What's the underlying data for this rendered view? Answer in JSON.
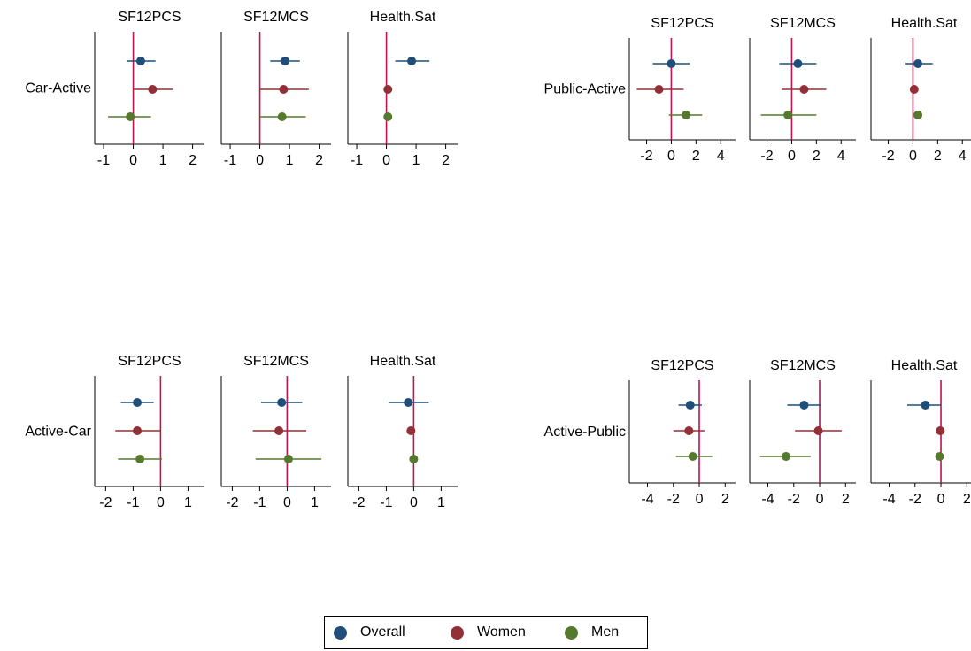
{
  "chart_data": [
    {
      "type": "coefficient-plot",
      "row_label": "Car-Active",
      "panels": [
        {
          "title": "SF12PCS",
          "xlim": [
            -1.3,
            2.4
          ],
          "ticks": [
            -1,
            0,
            1,
            2
          ],
          "points": [
            {
              "series": "Overall",
              "est": 0.25,
              "lo": -0.2,
              "hi": 0.75
            },
            {
              "series": "Women",
              "est": 0.65,
              "lo": 0.0,
              "hi": 1.35
            },
            {
              "series": "Men",
              "est": -0.1,
              "lo": -0.85,
              "hi": 0.6
            }
          ]
        },
        {
          "title": "SF12MCS",
          "xlim": [
            -1.3,
            2.4
          ],
          "ticks": [
            -1,
            0,
            1,
            2
          ],
          "points": [
            {
              "series": "Overall",
              "est": 0.85,
              "lo": 0.35,
              "hi": 1.35
            },
            {
              "series": "Women",
              "est": 0.8,
              "lo": 0.0,
              "hi": 1.65
            },
            {
              "series": "Men",
              "est": 0.75,
              "lo": 0.0,
              "hi": 1.55
            }
          ]
        },
        {
          "title": "Health.Sat",
          "xlim": [
            -1.3,
            2.4
          ],
          "ticks": [
            -1,
            0,
            1,
            2
          ],
          "points": [
            {
              "series": "Overall",
              "est": 0.85,
              "lo": 0.3,
              "hi": 1.45
            },
            {
              "series": "Women",
              "est": 0.05,
              "lo": 0.0,
              "hi": 0.1
            },
            {
              "series": "Men",
              "est": 0.05,
              "lo": 0.0,
              "hi": 0.1
            }
          ]
        }
      ]
    },
    {
      "type": "coefficient-plot",
      "row_label": "Public-Active",
      "panels": [
        {
          "title": "SF12PCS",
          "xlim": [
            -3.4,
            5.2
          ],
          "ticks": [
            -2,
            0,
            2,
            4
          ],
          "points": [
            {
              "series": "Overall",
              "est": 0.0,
              "lo": -1.5,
              "hi": 1.5
            },
            {
              "series": "Women",
              "est": -1.0,
              "lo": -2.8,
              "hi": 1.0
            },
            {
              "series": "Men",
              "est": 1.2,
              "lo": -0.2,
              "hi": 2.5
            }
          ]
        },
        {
          "title": "SF12MCS",
          "xlim": [
            -3.4,
            5.2
          ],
          "ticks": [
            -2,
            0,
            2,
            4
          ],
          "points": [
            {
              "series": "Overall",
              "est": 0.5,
              "lo": -1.0,
              "hi": 2.0
            },
            {
              "series": "Women",
              "est": 1.0,
              "lo": -0.8,
              "hi": 2.8
            },
            {
              "series": "Men",
              "est": -0.3,
              "lo": -2.5,
              "hi": 2.0
            }
          ]
        },
        {
          "title": "Health.Sat",
          "xlim": [
            -3.4,
            5.2
          ],
          "ticks": [
            -2,
            0,
            2,
            4
          ],
          "points": [
            {
              "series": "Overall",
              "est": 0.4,
              "lo": -0.6,
              "hi": 1.6
            },
            {
              "series": "Women",
              "est": 0.1,
              "lo": 0.0,
              "hi": 0.2
            },
            {
              "series": "Men",
              "est": 0.4,
              "lo": 0.3,
              "hi": 0.5
            }
          ]
        }
      ]
    },
    {
      "type": "coefficient-plot",
      "row_label": "Active-Car",
      "panels": [
        {
          "title": "SF12PCS",
          "xlim": [
            -2.4,
            1.6
          ],
          "ticks": [
            -2,
            -1,
            0,
            1
          ],
          "points": [
            {
              "series": "Overall",
              "est": -0.85,
              "lo": -1.45,
              "hi": -0.25
            },
            {
              "series": "Women",
              "est": -0.85,
              "lo": -1.65,
              "hi": 0.0
            },
            {
              "series": "Men",
              "est": -0.75,
              "lo": -1.55,
              "hi": 0.05
            }
          ]
        },
        {
          "title": "SF12MCS",
          "xlim": [
            -2.4,
            1.6
          ],
          "ticks": [
            -2,
            -1,
            0,
            1
          ],
          "points": [
            {
              "series": "Overall",
              "est": -0.2,
              "lo": -0.95,
              "hi": 0.55
            },
            {
              "series": "Women",
              "est": -0.3,
              "lo": -1.25,
              "hi": 0.7
            },
            {
              "series": "Men",
              "est": 0.05,
              "lo": -1.15,
              "hi": 1.25
            }
          ]
        },
        {
          "title": "Health.Sat",
          "xlim": [
            -2.4,
            1.6
          ],
          "ticks": [
            -2,
            -1,
            0,
            1
          ],
          "points": [
            {
              "series": "Overall",
              "est": -0.2,
              "lo": -0.9,
              "hi": 0.55
            },
            {
              "series": "Women",
              "est": -0.1,
              "lo": -0.15,
              "hi": -0.05
            },
            {
              "series": "Men",
              "est": 0.0,
              "lo": -0.05,
              "hi": 0.05
            }
          ]
        }
      ]
    },
    {
      "type": "coefficient-plot",
      "row_label": "Active-Public",
      "panels": [
        {
          "title": "SF12PCS",
          "xlim": [
            -5.4,
            2.8
          ],
          "ticks": [
            -4,
            -2,
            0,
            2
          ],
          "points": [
            {
              "series": "Overall",
              "est": -0.7,
              "lo": -1.6,
              "hi": 0.2
            },
            {
              "series": "Women",
              "est": -0.8,
              "lo": -2.0,
              "hi": 0.4
            },
            {
              "series": "Men",
              "est": -0.5,
              "lo": -1.8,
              "hi": 1.0
            }
          ]
        },
        {
          "title": "SF12MCS",
          "xlim": [
            -5.4,
            2.8
          ],
          "ticks": [
            -4,
            -2,
            0,
            2
          ],
          "points": [
            {
              "series": "Overall",
              "est": -1.2,
              "lo": -2.5,
              "hi": 0.1
            },
            {
              "series": "Women",
              "est": -0.1,
              "lo": -1.9,
              "hi": 1.7
            },
            {
              "series": "Men",
              "est": -2.6,
              "lo": -4.6,
              "hi": -0.7
            }
          ]
        },
        {
          "title": "Health.Sat",
          "xlim": [
            -5.4,
            2.8
          ],
          "ticks": [
            -4,
            -2,
            0,
            2
          ],
          "points": [
            {
              "series": "Overall",
              "est": -1.2,
              "lo": -2.6,
              "hi": 0.0
            },
            {
              "series": "Women",
              "est": -0.05,
              "lo": -0.1,
              "hi": 0.0
            },
            {
              "series": "Men",
              "est": -0.1,
              "lo": -0.15,
              "hi": -0.05
            }
          ]
        }
      ]
    }
  ],
  "legend": {
    "items": [
      {
        "label": "Overall",
        "color": "#1f4e79"
      },
      {
        "label": "Women",
        "color": "#923037"
      },
      {
        "label": "Men",
        "color": "#557a2e"
      }
    ]
  },
  "colors": {
    "reference_line": "#c0134f"
  }
}
